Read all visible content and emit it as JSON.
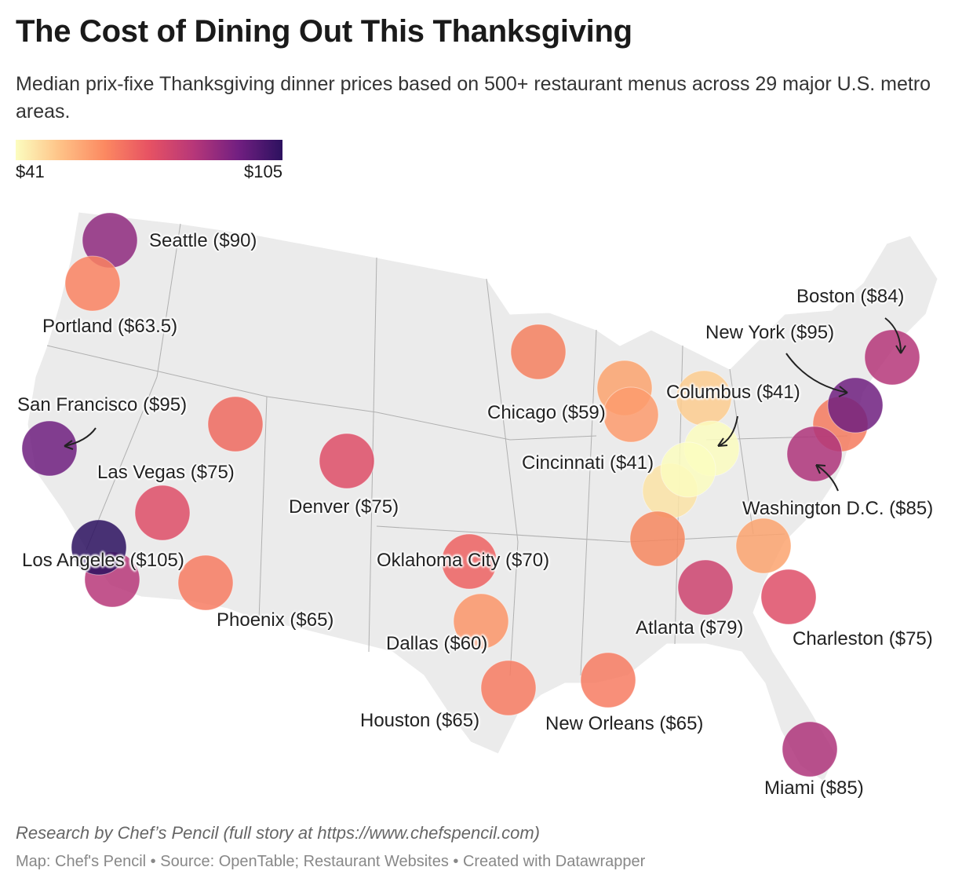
{
  "title": "The Cost of Dining Out This Thanksgiving",
  "subtitle": "Median prix-fixe Thanksgiving dinner prices based on 500+ restaurant menus across 29 major U.S. metro areas.",
  "legend": {
    "min_label": "$41",
    "max_label": "$105",
    "min": 41,
    "max": 105,
    "scale": "magma (yellow to dark purple)"
  },
  "colors": {
    "land": "#ebebeb",
    "border": "#b0b0b0",
    "ramp": [
      "#fcfdbf",
      "#fec287",
      "#fc8961",
      "#e75263",
      "#b73779",
      "#721f81",
      "#2c115f"
    ]
  },
  "cities": [
    {
      "label": "Seattle ($90)",
      "value": 90
    },
    {
      "label": "Portland ($63.5)",
      "value": 63.5
    },
    {
      "label": "San Francisco ($95)",
      "value": 95
    },
    {
      "label": "Las Vegas ($75)",
      "value": 75
    },
    {
      "label": "Los Angeles ($105)",
      "value": 105
    },
    {
      "label": "Phoenix ($65)",
      "value": 65
    },
    {
      "label": "Denver ($75)",
      "value": 75
    },
    {
      "label": "Oklahoma City ($70)",
      "value": 70
    },
    {
      "label": "Dallas ($60)",
      "value": 60
    },
    {
      "label": "Houston ($65)",
      "value": 65
    },
    {
      "label": "New Orleans ($65)",
      "value": 65
    },
    {
      "label": "Chicago ($59)",
      "value": 59
    },
    {
      "label": "Columbus ($41)",
      "value": 41
    },
    {
      "label": "Cincinnati ($41)",
      "value": 41
    },
    {
      "label": "Atlanta ($79)",
      "value": 79
    },
    {
      "label": "Charleston ($75)",
      "value": 75
    },
    {
      "label": "Miami ($85)",
      "value": 85
    },
    {
      "label": "Boston ($84)",
      "value": 84
    },
    {
      "label": "New York ($95)",
      "value": 95
    },
    {
      "label": "Washington D.C. ($85)",
      "value": 85
    }
  ],
  "unlabeled_markers": [
    {
      "color": "#b73779"
    },
    {
      "color": "#ee6a5f"
    },
    {
      "color": "#f4805f"
    },
    {
      "color": "#fca36f"
    },
    {
      "color": "#fdcc8f"
    },
    {
      "color": "#fce3a6"
    },
    {
      "color": "#f6875f"
    },
    {
      "color": "#fca36f"
    },
    {
      "color": "#f47a5e"
    }
  ],
  "credit": "Research by Chef’s Pencil (full story at https://www.chefspencil.com)",
  "footer": "Map: Chef's Pencil • Source: OpenTable; Restaurant Websites • Created with Datawrapper"
}
